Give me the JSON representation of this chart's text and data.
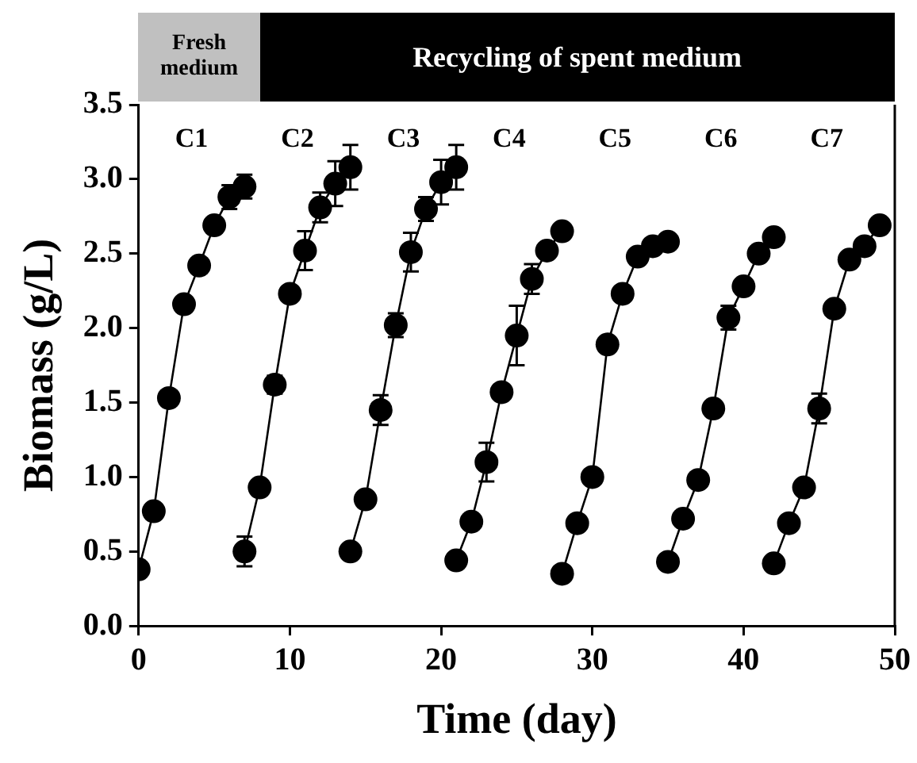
{
  "chart_data": {
    "type": "line",
    "xlabel": "Time (day)",
    "ylabel": "Biomass (g/L)",
    "xlim": [
      0,
      50
    ],
    "xticks": [
      0,
      10,
      20,
      30,
      40,
      50
    ],
    "ylim": [
      0,
      3.5
    ],
    "yticks": [
      {
        "value": 0,
        "label": "0.0"
      },
      {
        "value": 0.5,
        "label": "0.5"
      },
      {
        "value": 1,
        "label": "1.0"
      },
      {
        "value": 1.5,
        "label": "1.5"
      },
      {
        "value": 2,
        "label": "2.0"
      },
      {
        "value": 2.5,
        "label": "2.5"
      },
      {
        "value": 3,
        "label": "3.0"
      },
      {
        "value": 3.5,
        "label": "3.5"
      }
    ],
    "grid": false,
    "legend": false,
    "marker": "circle",
    "line_style": "solid",
    "series": [
      {
        "color": "#000000",
        "x": [
          0,
          1,
          2,
          3,
          4,
          5,
          6,
          7
        ],
        "values": [
          0.38,
          0.77,
          1.53,
          2.16,
          2.42,
          2.69,
          2.88,
          2.95
        ],
        "errors": [
          null,
          null,
          null,
          null,
          null,
          null,
          0.08,
          0.08
        ]
      },
      {
        "color": "#000000",
        "x": [
          7,
          8,
          9,
          10,
          11,
          12,
          13,
          14
        ],
        "values": [
          0.5,
          0.93,
          1.62,
          2.23,
          2.52,
          2.81,
          2.97,
          3.08
        ],
        "errors": [
          0.1,
          null,
          0.06,
          null,
          0.13,
          0.1,
          0.15,
          0.15
        ]
      },
      {
        "color": "#000000",
        "x": [
          14,
          15,
          16,
          17,
          18,
          19,
          20,
          21
        ],
        "values": [
          0.5,
          0.85,
          1.45,
          2.02,
          2.51,
          2.8,
          2.98,
          3.08
        ],
        "errors": [
          null,
          null,
          0.1,
          0.08,
          0.13,
          0.08,
          0.15,
          0.15
        ]
      },
      {
        "color": "#000000",
        "x": [
          21,
          22,
          23,
          24,
          25,
          26,
          27,
          28
        ],
        "values": [
          0.44,
          0.7,
          1.1,
          1.57,
          1.95,
          2.33,
          2.52,
          2.65
        ],
        "errors": [
          null,
          null,
          0.13,
          null,
          0.2,
          0.1,
          null,
          null
        ]
      },
      {
        "color": "#000000",
        "x": [
          28,
          29,
          30,
          31,
          32,
          33,
          34,
          35
        ],
        "values": [
          0.35,
          0.69,
          1.0,
          1.89,
          2.23,
          2.48,
          2.55,
          2.58
        ],
        "errors": [
          null,
          null,
          null,
          null,
          null,
          null,
          null,
          null
        ]
      },
      {
        "color": "#000000",
        "x": [
          35,
          36,
          37,
          38,
          39,
          40,
          41,
          42
        ],
        "values": [
          0.43,
          0.72,
          0.98,
          1.46,
          2.07,
          2.28,
          2.5,
          2.61
        ],
        "errors": [
          null,
          null,
          0.05,
          null,
          0.08,
          null,
          null,
          null
        ]
      },
      {
        "color": "#000000",
        "x": [
          42,
          43,
          44,
          45,
          46,
          47,
          48,
          49
        ],
        "values": [
          0.42,
          0.69,
          0.93,
          1.46,
          2.13,
          2.46,
          2.55,
          2.69
        ],
        "errors": [
          null,
          null,
          null,
          0.1,
          null,
          null,
          null,
          null
        ]
      }
    ],
    "annotations": [
      "Fresh medium",
      "Recycling of spent medium",
      "C1",
      "C2",
      "C3",
      "C4",
      "C5",
      "C6",
      "C7"
    ]
  }
}
